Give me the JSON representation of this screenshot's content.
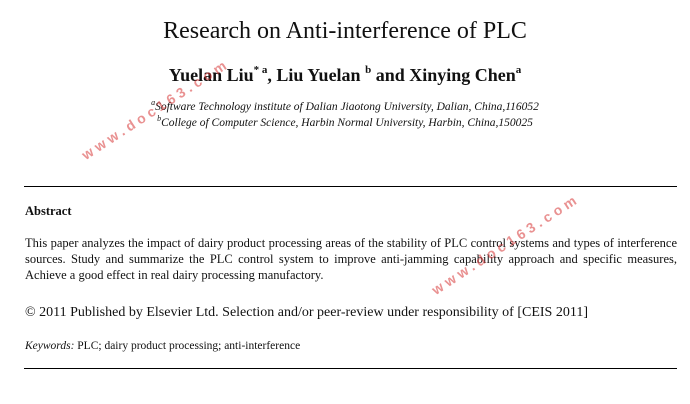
{
  "title": "Research on Anti-interference of PLC",
  "authors": {
    "a1_name": "Yuelan Liu",
    "a1_sup": "* a",
    "sep1": ", ",
    "a2_name": "Liu Yuelan",
    "a2_sup": "b",
    "sep2": " and ",
    "a3_name": "Xinying Chen",
    "a3_sup": "a"
  },
  "affiliations": [
    {
      "sup": "a",
      "text": "Software Technology institute of  Dalian Jiaotong University, Dalian, China,116052"
    },
    {
      "sup": "b",
      "text": "College of Computer Science, Harbin Normal University, Harbin, China,150025"
    }
  ],
  "abstract": {
    "heading": "Abstract",
    "body": "This paper analyzes the impact of dairy product processing areas of the stability of PLC control systems and types of interference sources. Study and summarize the PLC control system to improve anti-jamming capability approach and specific measures, Achieve a good effect in real dairy processing manufactory."
  },
  "copyright": "© 2011 Published by Elsevier Ltd. Selection and/or peer-review under responsibility of [CEIS 2011]",
  "keywords": {
    "label": "Keywords:",
    "text": " PLC; dairy product processing; anti-interference"
  },
  "watermark": "www.doc163.com"
}
